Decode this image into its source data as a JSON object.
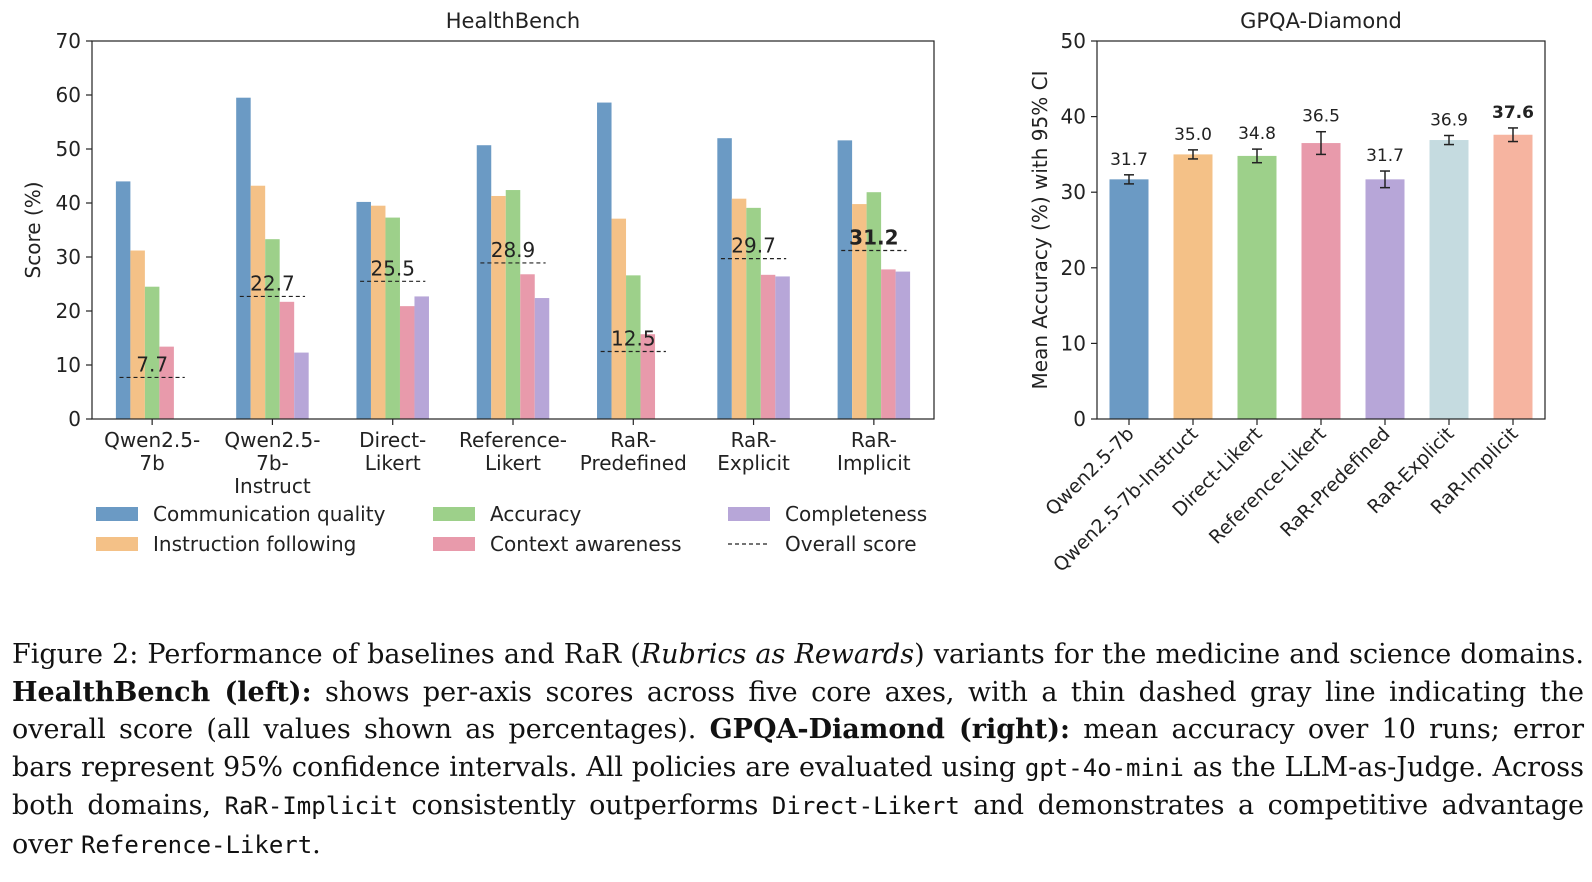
{
  "chart_data": [
    {
      "type": "bar",
      "title": "HealthBench",
      "xlabel": "",
      "ylabel": "Score (%)",
      "ylim": [
        0,
        70
      ],
      "yticks": [
        0,
        10,
        20,
        30,
        40,
        50,
        60,
        70
      ],
      "categories": [
        [
          "Qwen2.5-",
          "7b"
        ],
        [
          "Qwen2.5-",
          "7b-",
          "Instruct"
        ],
        [
          "Direct-",
          "Likert"
        ],
        [
          "Reference-",
          "Likert"
        ],
        [
          "RaR-",
          "Predefined"
        ],
        [
          "RaR-",
          "Explicit"
        ],
        [
          "RaR-",
          "Implicit"
        ]
      ],
      "series": [
        {
          "name": "Communication quality",
          "color": "#6b9ac4",
          "values": [
            44.0,
            59.5,
            40.2,
            50.7,
            58.6,
            52.0,
            51.6
          ]
        },
        {
          "name": "Instruction following",
          "color": "#f4c187",
          "values": [
            31.2,
            43.2,
            39.5,
            41.3,
            37.1,
            40.8,
            39.8
          ]
        },
        {
          "name": "Accuracy",
          "color": "#9dd08a",
          "values": [
            24.5,
            33.3,
            37.3,
            42.4,
            26.6,
            39.1,
            42.0
          ]
        },
        {
          "name": "Context awareness",
          "color": "#e89aab",
          "values": [
            13.4,
            21.7,
            20.9,
            26.8,
            15.7,
            26.7,
            27.7
          ]
        },
        {
          "name": "Completeness",
          "color": "#b7a6d8",
          "values": [
            0,
            12.3,
            22.7,
            22.4,
            0,
            26.4,
            27.3
          ]
        }
      ],
      "overall": {
        "name": "Overall score",
        "values": [
          7.7,
          22.7,
          25.5,
          28.9,
          12.5,
          29.7,
          31.2
        ],
        "labels": [
          "7.7",
          "22.7",
          "25.5",
          "28.9",
          "12.5",
          "29.7",
          "31.2"
        ],
        "best_index": 6
      },
      "legend": [
        {
          "label": "Communication quality",
          "kind": "bar",
          "color": "#6b9ac4"
        },
        {
          "label": "Accuracy",
          "kind": "bar",
          "color": "#9dd08a"
        },
        {
          "label": "Completeness",
          "kind": "bar",
          "color": "#b7a6d8"
        },
        {
          "label": "Instruction following",
          "kind": "bar",
          "color": "#f4c187"
        },
        {
          "label": "Context awareness",
          "kind": "bar",
          "color": "#e89aab"
        },
        {
          "label": "Overall score",
          "kind": "dash",
          "color": "#222222"
        }
      ]
    },
    {
      "type": "bar",
      "title": "GPQA-Diamond",
      "xlabel": "",
      "ylabel": "Mean Accuracy (%) with 95% CI",
      "ylim": [
        0,
        50
      ],
      "yticks": [
        0,
        10,
        20,
        30,
        40,
        50
      ],
      "categories": [
        "Qwen2.5-7b",
        "Qwen2.5-7b-Instruct",
        "Direct-Likert",
        "Reference-Likert",
        "RaR-Predefined",
        "RaR-Explicit",
        "RaR-Implicit"
      ],
      "values": [
        31.7,
        35.0,
        34.8,
        36.5,
        31.7,
        36.9,
        37.6
      ],
      "value_labels": [
        "31.7",
        "35.0",
        "34.8",
        "36.5",
        "31.7",
        "36.9",
        "37.6"
      ],
      "ci": [
        0.6,
        0.6,
        0.9,
        1.5,
        1.1,
        0.6,
        0.9
      ],
      "colors": [
        "#6b9ac4",
        "#f4c187",
        "#9dd08a",
        "#e89aab",
        "#b7a6d8",
        "#c5dbe0",
        "#f6b4a0"
      ],
      "best_index": 6
    }
  ],
  "caption": {
    "figure_label": "Figure 2: Performance of baselines and RaR (",
    "rar_name": "Rubrics as Rewards",
    "intro_rest": ") variants for the medicine and science domains.",
    "hb_label": "HealthBench (left):",
    "hb_text": " shows per-axis scores across five core axes, with a thin dashed gray line indicating the overall score (all values shown as percentages).",
    "gp_label": "GPQA-Diamond (right):",
    "gp_text": " mean accuracy over 10 runs; error bars represent 95% confidence intervals. All policies are evaluated using ",
    "judge_model": "gpt-4o-mini",
    "judge_text": " as the LLM-as-Judge. Across both domains, ",
    "m_implicit": "RaR-Implicit",
    "t_outperforms": " consistently outperforms ",
    "m_direct": "Direct-Likert",
    "t_demonstrates": " and demonstrates a competitive advantage over ",
    "m_reference": "Reference-Likert",
    "t_end": "."
  }
}
